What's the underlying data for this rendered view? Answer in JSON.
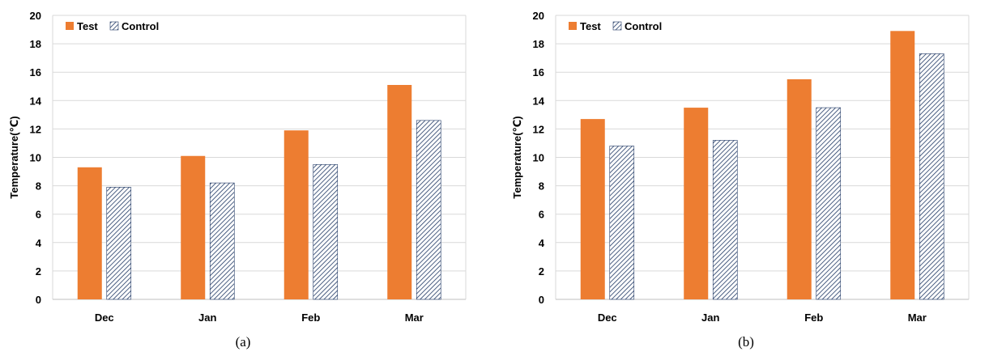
{
  "chart_data": [
    {
      "type": "bar",
      "caption": "(a)",
      "categories": [
        "Dec",
        "Jan",
        "Feb",
        "Mar"
      ],
      "series": [
        {
          "name": "Test",
          "values": [
            9.3,
            10.1,
            11.9,
            15.1
          ]
        },
        {
          "name": "Control",
          "values": [
            7.9,
            8.2,
            9.5,
            12.6
          ]
        }
      ],
      "ylabel": "Temperature(℃)",
      "ylim": [
        0,
        20
      ],
      "yticks": [
        0,
        2,
        4,
        6,
        8,
        10,
        12,
        14,
        16,
        18,
        20
      ],
      "grid": true,
      "legend": "top-left"
    },
    {
      "type": "bar",
      "caption": "(b)",
      "categories": [
        "Dec",
        "Jan",
        "Feb",
        "Mar"
      ],
      "series": [
        {
          "name": "Test",
          "values": [
            12.7,
            13.5,
            15.5,
            18.9
          ]
        },
        {
          "name": "Control",
          "values": [
            10.8,
            11.2,
            13.5,
            17.3
          ]
        }
      ],
      "ylabel": "Temperature(℃)",
      "ylim": [
        0,
        20
      ],
      "yticks": [
        0,
        2,
        4,
        6,
        8,
        10,
        12,
        14,
        16,
        18,
        20
      ],
      "grid": true,
      "legend": "top-left"
    }
  ],
  "colors": {
    "test": "#ED7D31",
    "control_fill": "#ffffff",
    "control_hatch": "#1F3864",
    "grid": "#D9D9D9"
  }
}
